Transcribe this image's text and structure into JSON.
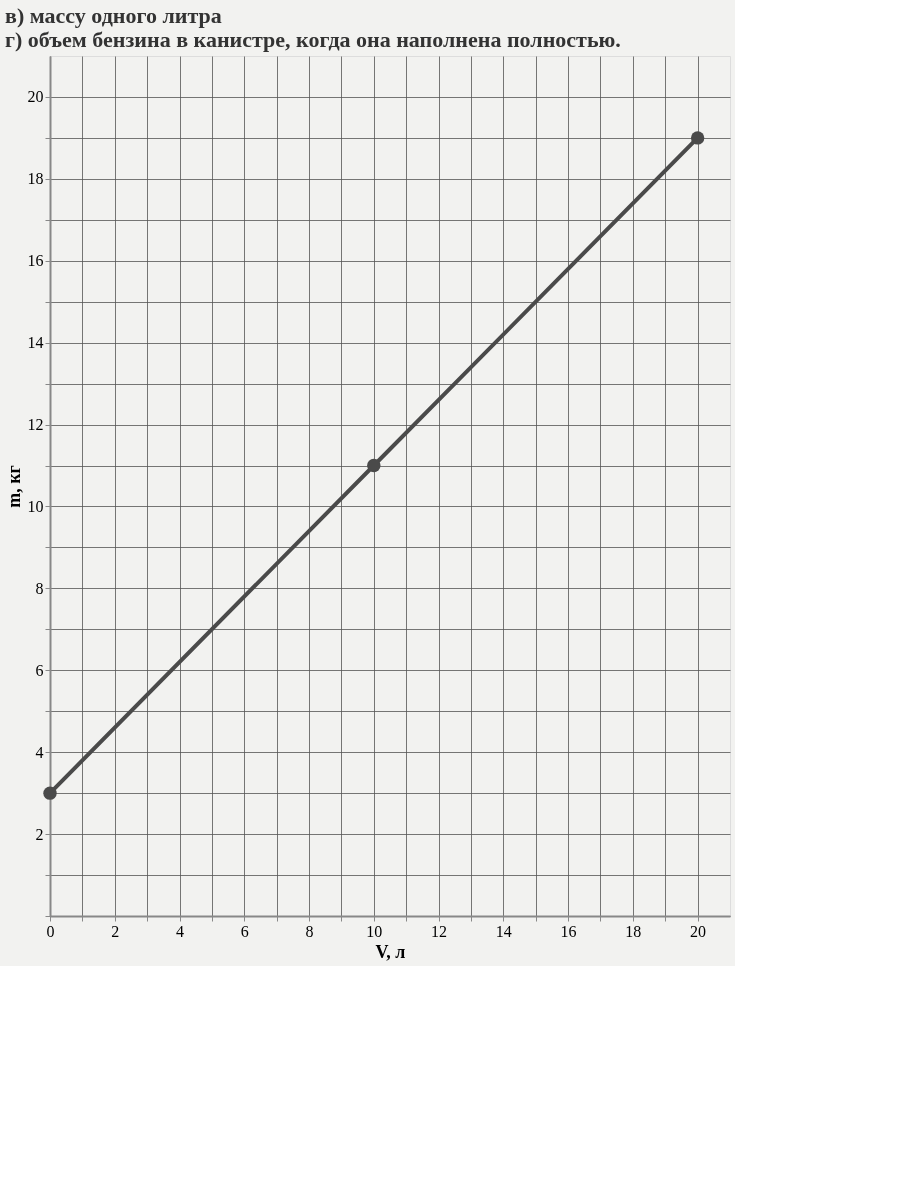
{
  "chart_data": {
    "type": "line",
    "annotations": [
      "в) массу одного литра",
      "г) объем бензина в канистре, когда она наполнена полностью."
    ],
    "xlabel": "V, л",
    "ylabel": "m, кг",
    "x": [
      0,
      10,
      20
    ],
    "series": [
      {
        "color": "#4a4a4a",
        "values": [
          3,
          11,
          19
        ]
      }
    ],
    "xlim": [
      0,
      21
    ],
    "ylim": [
      0,
      21
    ],
    "xticks": [
      0,
      {
        "value": 1,
        "label": null
      },
      2,
      {
        "value": 3,
        "label": null
      },
      4,
      {
        "value": 5,
        "label": null
      },
      6,
      {
        "value": 7,
        "label": null
      },
      8,
      {
        "value": 9,
        "label": null
      },
      10,
      {
        "value": 11,
        "label": null
      },
      12,
      {
        "value": 13,
        "label": null
      },
      14,
      {
        "value": 15,
        "label": null
      },
      16,
      {
        "value": 17,
        "label": null
      },
      18,
      {
        "value": 19,
        "label": null
      },
      20
    ],
    "yticks": [
      {
        "value": 0,
        "label": null
      },
      {
        "value": 1,
        "label": null
      },
      2,
      {
        "value": 3,
        "label": null
      },
      4,
      {
        "value": 5,
        "label": null
      },
      6,
      {
        "value": 7,
        "label": null
      },
      8,
      {
        "value": 9,
        "label": null
      },
      10,
      {
        "value": 11,
        "label": null
      },
      12,
      {
        "value": 13,
        "label": null
      },
      14,
      {
        "value": 15,
        "label": null
      },
      16,
      {
        "value": 17,
        "label": null
      },
      18,
      {
        "value": 19,
        "label": null
      },
      20
    ],
    "grid": true,
    "marker": "circle",
    "line_style": "solid"
  }
}
